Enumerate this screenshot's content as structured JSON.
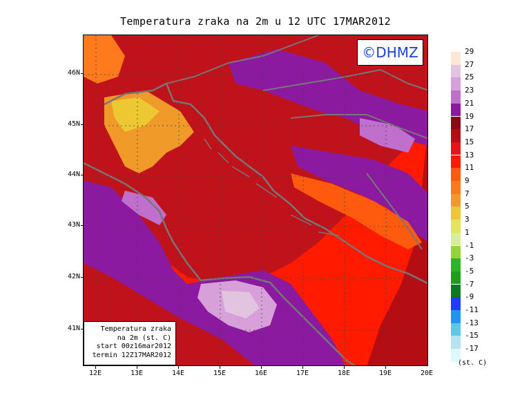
{
  "title": "Temperatura zraka na 2m u 12 UTC 17MAR2012",
  "logo_text": "©DHMZ",
  "info_box": [
    "Temperatura zraka",
    "na 2m (st. C)",
    "start 00z16mar2012",
    "termin 12Z17MAR2012"
  ],
  "lat_labels": [
    "46N",
    "45N",
    "44N",
    "43N",
    "42N",
    "41N"
  ],
  "lon_labels": [
    "12E",
    "13E",
    "14E",
    "15E",
    "16E",
    "17E",
    "18E",
    "19E",
    "20E"
  ],
  "legend": {
    "labels": [
      "29",
      "27",
      "25",
      "23",
      "21",
      "19",
      "17",
      "15",
      "13",
      "11",
      "9",
      "7",
      "5",
      "3",
      "1",
      "-1",
      "-3",
      "-5",
      "-7",
      "-9",
      "-11",
      "-13",
      "-15",
      "-17"
    ],
    "colors": [
      "#fbe8d2",
      "#e2c4e0",
      "#d8a0d8",
      "#c070cc",
      "#8c1aa0",
      "#8b0a1a",
      "#b40e14",
      "#e8141a",
      "#ff1a00",
      "#ff5a0e",
      "#ff7a1c",
      "#f09a2a",
      "#eec832",
      "#e6e45c",
      "#d6ee9a",
      "#96d23a",
      "#2eb428",
      "#1f9e1c",
      "#0c7a1e",
      "#1e3cff",
      "#2196f0",
      "#5ec8e6",
      "#b6e4f0",
      "#e0f8fb"
    ],
    "units": "(st. C)"
  },
  "colors": {
    "background_sea": "#ff1a00",
    "land_base": "#c0121a",
    "coast": "#777777",
    "logo_text": "#1a3fd4"
  }
}
